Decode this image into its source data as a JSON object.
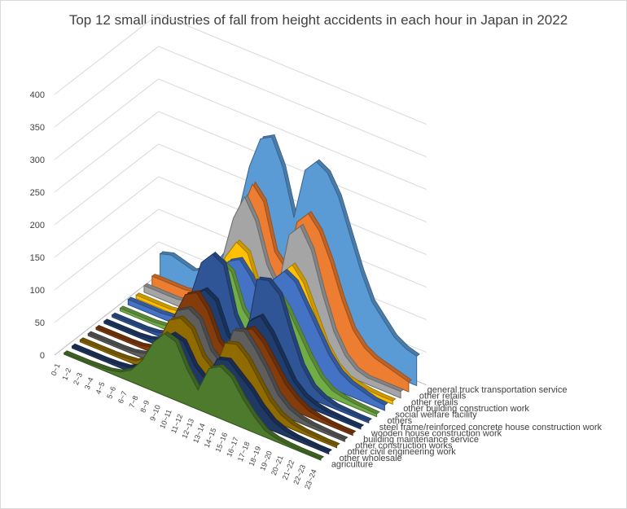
{
  "chart_data": {
    "type": "area",
    "subtype": "3d-area",
    "title": "Top 12 small industries of fall from height accidents in each hour in Japan in 2022",
    "xlabel": "",
    "ylabel": "",
    "ylim": [
      0,
      400
    ],
    "yticks": [
      "0",
      "50",
      "100",
      "150",
      "200",
      "250",
      "300",
      "350",
      "400"
    ],
    "grid": true,
    "legend": "none",
    "categories": [
      "0~1",
      "1~2",
      "2~3",
      "3~4",
      "4~5",
      "5~6",
      "6~7",
      "7~8",
      "8~9",
      "9~10",
      "10~11",
      "11~12",
      "12~13",
      "13~14",
      "14~15",
      "15~16",
      "16~17",
      "17~18",
      "18~19",
      "19~20",
      "20~21",
      "21~22",
      "22~23",
      "23~24"
    ],
    "series": [
      {
        "name": "agriculture",
        "color": "#4e7a2d",
        "values": [
          2,
          2,
          2,
          3,
          4,
          8,
          18,
          40,
          75,
          95,
          90,
          55,
          30,
          70,
          80,
          70,
          45,
          25,
          10,
          5,
          3,
          2,
          2,
          2
        ]
      },
      {
        "name": "other wholesale",
        "color": "#203864",
        "values": [
          3,
          3,
          3,
          3,
          4,
          6,
          15,
          40,
          70,
          85,
          80,
          50,
          35,
          75,
          80,
          65,
          50,
          30,
          15,
          8,
          5,
          4,
          3,
          3
        ]
      },
      {
        "name": "other civil engineering work",
        "color": "#8f6b00",
        "values": [
          3,
          3,
          3,
          3,
          4,
          6,
          18,
          50,
          90,
          100,
          90,
          55,
          40,
          90,
          95,
          80,
          55,
          30,
          15,
          8,
          5,
          4,
          3,
          3
        ]
      },
      {
        "name": "other construction works",
        "color": "#5e5e5e",
        "values": [
          3,
          3,
          3,
          3,
          4,
          8,
          20,
          50,
          95,
          105,
          95,
          55,
          40,
          100,
          105,
          85,
          60,
          30,
          15,
          8,
          5,
          4,
          3,
          3
        ]
      },
      {
        "name": "building maintenance service",
        "color": "#843c0c",
        "values": [
          3,
          3,
          3,
          3,
          4,
          8,
          25,
          70,
          110,
          120,
          100,
          60,
          45,
          90,
          100,
          85,
          60,
          35,
          20,
          10,
          6,
          4,
          3,
          3
        ]
      },
      {
        "name": "wooden house construction work",
        "color": "#1f3d6e",
        "values": [
          3,
          3,
          3,
          3,
          5,
          10,
          25,
          60,
          100,
          115,
          105,
          60,
          45,
          95,
          110,
          90,
          60,
          30,
          15,
          8,
          5,
          4,
          3,
          3
        ]
      },
      {
        "name": "steel frame/reinforced concrete house construction work",
        "color": "#2f5597",
        "values": [
          3,
          3,
          3,
          3,
          5,
          10,
          30,
          80,
          140,
          160,
          150,
          80,
          50,
          150,
          155,
          140,
          90,
          45,
          20,
          10,
          5,
          4,
          3,
          3
        ]
      },
      {
        "name": "others",
        "color": "#70ad47",
        "values": [
          4,
          4,
          4,
          4,
          6,
          12,
          30,
          75,
          120,
          140,
          130,
          80,
          60,
          120,
          130,
          110,
          80,
          50,
          25,
          12,
          8,
          6,
          5,
          4
        ]
      },
      {
        "name": "social welfare facility",
        "color": "#4472c4",
        "values": [
          8,
          8,
          8,
          8,
          10,
          15,
          30,
          60,
          100,
          130,
          140,
          120,
          90,
          130,
          150,
          140,
          110,
          80,
          50,
          30,
          20,
          15,
          10,
          8
        ]
      },
      {
        "name": "other building construction work",
        "color": "#ffc000",
        "values": [
          5,
          5,
          5,
          5,
          8,
          15,
          35,
          70,
          120,
          150,
          140,
          90,
          60,
          130,
          150,
          130,
          90,
          50,
          25,
          12,
          8,
          6,
          5,
          5
        ]
      },
      {
        "name": "other retails",
        "color": "#a5a5a5",
        "values": [
          10,
          10,
          10,
          10,
          15,
          25,
          50,
          100,
          170,
          210,
          180,
          120,
          90,
          180,
          200,
          170,
          110,
          60,
          30,
          15,
          10,
          10,
          10,
          10
        ]
      },
      {
        "name": "other retails",
        "color": "#ed7d31",
        "values": [
          15,
          15,
          15,
          15,
          20,
          30,
          60,
          110,
          170,
          220,
          200,
          130,
          110,
          190,
          210,
          190,
          150,
          100,
          60,
          40,
          30,
          25,
          20,
          15
        ]
      },
      {
        "name": "general truck transportation service",
        "color": "#5b9bd5",
        "values": [
          40,
          45,
          40,
          35,
          45,
          60,
          90,
          150,
          230,
          280,
          290,
          250,
          180,
          260,
          280,
          270,
          240,
          190,
          140,
          100,
          80,
          60,
          50,
          45
        ]
      }
    ]
  }
}
